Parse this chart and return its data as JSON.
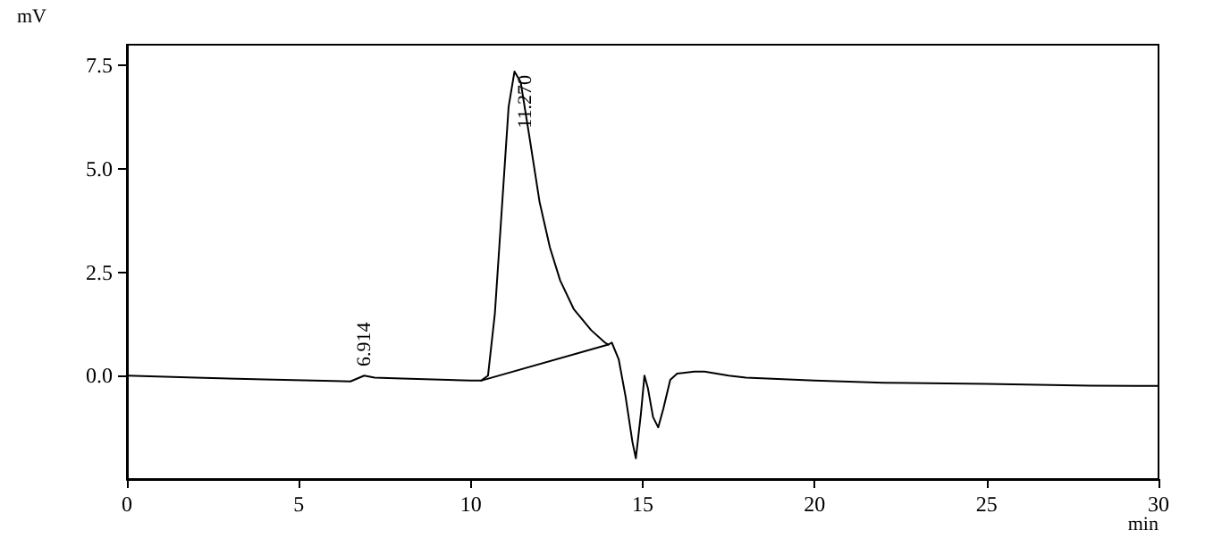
{
  "chart_data": {
    "type": "line",
    "xlabel": "min",
    "ylabel": "mV",
    "xlim": [
      0,
      30
    ],
    "xticks": [
      0,
      5,
      10,
      15,
      20,
      25,
      30
    ],
    "ylim": [
      -2.5,
      8
    ],
    "yticks": [
      {
        "value": 0,
        "label": "0.0"
      },
      {
        "value": 2.5,
        "label": "2.5"
      },
      {
        "value": 5,
        "label": "5.0"
      },
      {
        "value": 7.5,
        "label": "7.5"
      }
    ],
    "grid": false,
    "marker": "none",
    "line_style": "solid",
    "series": [
      {
        "color": "#000000",
        "x": [
          0,
          2,
          4,
          6,
          6.5,
          6.9,
          7.2,
          8,
          10,
          10.3,
          10.5,
          10.7,
          10.9,
          11.1,
          11.27,
          11.45,
          11.7,
          12.0,
          12.3,
          12.6,
          13.0,
          13.5,
          13.9,
          14.0,
          14.1,
          14.3,
          14.5,
          14.7,
          14.8,
          14.95,
          15.05,
          15.15,
          15.3,
          15.45,
          15.6,
          15.8,
          16.0,
          16.5,
          16.8,
          17.5,
          18,
          20,
          22,
          25,
          28,
          30
        ],
        "values": [
          0,
          -0.05,
          -0.09,
          -0.13,
          -0.14,
          0.0,
          -0.05,
          -0.07,
          -0.12,
          -0.12,
          0.0,
          1.5,
          4.0,
          6.5,
          7.35,
          7.1,
          5.8,
          4.2,
          3.1,
          2.3,
          1.6,
          1.1,
          0.8,
          0.75,
          0.8,
          0.4,
          -0.5,
          -1.6,
          -2.0,
          -0.9,
          0.0,
          -0.3,
          -1.0,
          -1.25,
          -0.8,
          -0.1,
          0.05,
          0.1,
          0.1,
          0.0,
          -0.05,
          -0.12,
          -0.17,
          -0.2,
          -0.24,
          -0.25
        ]
      },
      {
        "color": "#000000",
        "x": [
          10.3,
          14.0
        ],
        "values": [
          -0.12,
          0.75
        ]
      }
    ],
    "annotations": [
      {
        "text": "6.914",
        "x": 6.914,
        "y": 0.05
      },
      {
        "text": "11.270",
        "x": 11.27,
        "y": 7.35
      }
    ]
  }
}
